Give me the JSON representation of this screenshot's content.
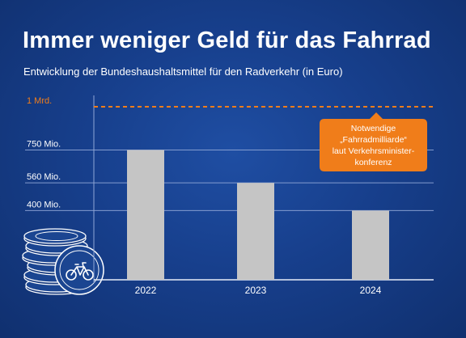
{
  "colors": {
    "background": "#173f8c",
    "bar": "#c5c5c5",
    "target_line": "#f07d1a",
    "callout": "#f07d1a",
    "text": "#ffffff",
    "grid": "#8fa6d6"
  },
  "header": {
    "title": "Immer weniger Geld für das Fahrrad",
    "subtitle": "Entwicklung der Bundeshaushaltsmittel für den Radverkehr (in Euro)"
  },
  "decoration": {
    "icon": "coin-stack-bicycle-icon"
  },
  "chart_data": {
    "type": "bar",
    "title": "Immer weniger Geld für das Fahrrad",
    "subtitle": "Entwicklung der Bundeshaushaltsmittel für den Radverkehr (in Euro)",
    "xlabel": "",
    "ylabel": "",
    "categories": [
      "2022",
      "2023",
      "2024"
    ],
    "values": [
      750000000,
      560000000,
      400000000
    ],
    "ylim": [
      0,
      1000000000
    ],
    "yticks": [
      {
        "value": 400000000,
        "label": "400 Mio."
      },
      {
        "value": 560000000,
        "label": "560 Mio."
      },
      {
        "value": 750000000,
        "label": "750 Mio."
      },
      {
        "value": 1000000000,
        "label": "1 Mrd."
      }
    ],
    "target": {
      "value": 1000000000,
      "label": "1 Mrd.",
      "annotation": [
        "Notwendige",
        "„Fahrradmilliarde“",
        "laut Verkehrsminister-",
        "konferenz"
      ]
    },
    "grid": true,
    "legend": "none"
  }
}
